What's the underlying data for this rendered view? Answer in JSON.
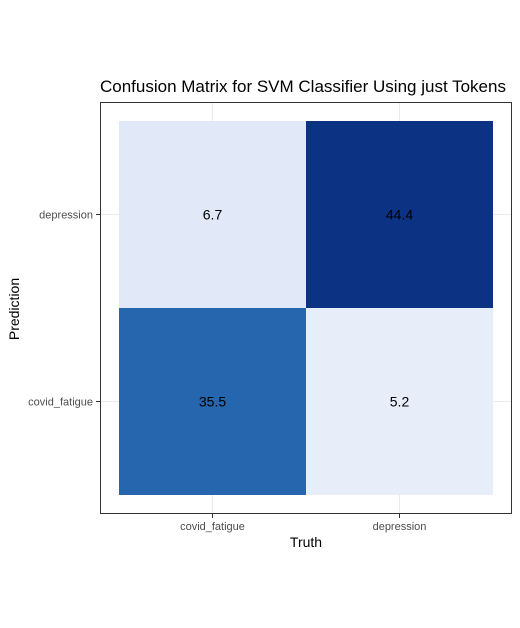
{
  "chart_data": {
    "type": "heatmap",
    "title": "Confusion Matrix for SVM Classifier Using just Tokens",
    "xlabel": "Truth",
    "ylabel": "Prediction",
    "x_categories": [
      "covid_fatigue",
      "depression"
    ],
    "y_categories": [
      "covid_fatigue",
      "depression"
    ],
    "cells": [
      {
        "truth": "covid_fatigue",
        "prediction": "depression",
        "value": 6.7,
        "color": "#e1e8f7"
      },
      {
        "truth": "depression",
        "prediction": "depression",
        "value": 44.4,
        "color": "#0c3383"
      },
      {
        "truth": "covid_fatigue",
        "prediction": "covid_fatigue",
        "value": 35.5,
        "color": "#2566ae"
      },
      {
        "truth": "depression",
        "prediction": "covid_fatigue",
        "value": 5.2,
        "color": "#e7edf9"
      }
    ],
    "grid": true,
    "legend": "none"
  }
}
